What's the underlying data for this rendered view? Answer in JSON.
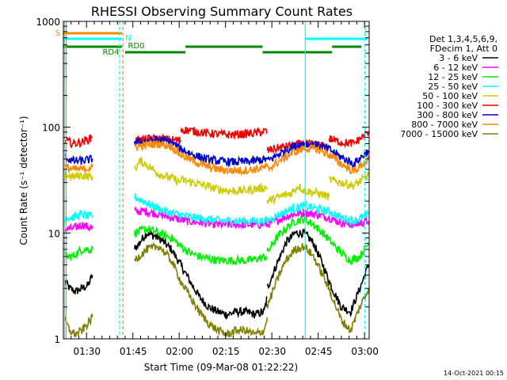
{
  "chart_data": {
    "type": "line",
    "title": "RHESSI Observing Summary Count Rates",
    "xlabel": "Start Time (09-Mar-08 01:22:22)",
    "ylabel": "Count Rate (s⁻¹ detector⁻¹)",
    "yscale": "log",
    "ylim": [
      1,
      1000
    ],
    "xlim_minutes": [
      0,
      99
    ],
    "x_ticks": [
      "01:30",
      "01:45",
      "02:00",
      "02:15",
      "02:30",
      "02:45",
      "03:00"
    ],
    "y_ticks": [
      "1",
      "10",
      "100",
      "1000"
    ],
    "footer_date": "14-Oct-2021 00:15",
    "legend_header": [
      "Det 1,3,4,5,6,9,",
      "FDecim 1, Att 0"
    ],
    "flag_labels": [
      "S",
      "N",
      "RD0",
      "RD4"
    ],
    "series": [
      {
        "name": "3 - 6 keV",
        "color": "#000000",
        "segments": [
          {
            "x": [
              0.6,
              2,
              4,
              6,
              8,
              9.4
            ],
            "y": [
              3.5,
              3,
              2.8,
              3,
              3.2,
              4
            ]
          },
          {
            "x": [
              23,
              27,
              31,
              35,
              38,
              41,
              44,
              47,
              50,
              53,
              56,
              59,
              62,
              65,
              66
            ],
            "y": [
              7,
              10,
              9,
              7,
              5,
              3.5,
              2.5,
              2,
              1.8,
              1.7,
              1.8,
              1.8,
              1.7,
              1.8,
              2.5
            ]
          },
          {
            "x": [
              66,
              69,
              72,
              75,
              78,
              81,
              84,
              87,
              90,
              93,
              96,
              98.8
            ],
            "y": [
              3,
              5,
              8,
              10,
              10,
              8,
              5,
              3,
              2,
              1.8,
              3,
              5
            ]
          }
        ]
      },
      {
        "name": "6 - 12 keV",
        "color": "#ff00ff",
        "segments": [
          {
            "x": [
              0.6,
              3,
              6,
              9.4
            ],
            "y": [
              11,
              11,
              12,
              11
            ]
          },
          {
            "x": [
              23,
              27,
              31,
              35,
              40,
              45,
              50,
              55,
              60,
              66
            ],
            "y": [
              16,
              16,
              15,
              14,
              13,
              12.5,
              12,
              12,
              12,
              12
            ]
          },
          {
            "x": [
              66,
              70,
              74,
              78,
              82,
              86,
              90,
              94,
              98.8
            ],
            "y": [
              12,
              13.5,
              15,
              15.5,
              15,
              14,
              12.5,
              12,
              13
            ]
          }
        ]
      },
      {
        "name": "12 - 25 keV",
        "color": "#00ee00",
        "segments": [
          {
            "x": [
              0.6,
              3,
              6,
              9.4
            ],
            "y": [
              6,
              6,
              7,
              7
            ]
          },
          {
            "x": [
              23,
              27,
              31,
              35,
              38,
              41,
              44,
              50,
              55,
              60,
              66
            ],
            "y": [
              10,
              11,
              10,
              9,
              7.5,
              6.5,
              6,
              5.5,
              5.5,
              5.5,
              6
            ]
          },
          {
            "x": [
              66,
              69,
              72,
              75,
              78,
              81,
              84,
              87,
              90,
              93,
              96,
              98.8
            ],
            "y": [
              6.5,
              9,
              11,
              13,
              13.5,
              12,
              10,
              8,
              6.5,
              5.5,
              6,
              8
            ]
          }
        ]
      },
      {
        "name": "25 - 50 keV",
        "color": "#00ffff",
        "segments": [
          {
            "x": [
              0.6,
              3,
              6,
              9.4
            ],
            "y": [
              14,
              14,
              15,
              14
            ]
          },
          {
            "x": [
              23,
              26,
              29,
              33,
              37,
              42,
              47,
              52,
              57,
              62,
              66
            ],
            "y": [
              22,
              20,
              18,
              16,
              15,
              14,
              13.5,
              13,
              13,
              13,
              13
            ]
          },
          {
            "x": [
              66,
              70,
              74,
              78,
              82,
              86,
              90,
              94,
              98.8
            ],
            "y": [
              13,
              15,
              17,
              18,
              17,
              16,
              14,
              13,
              15
            ]
          }
        ]
      },
      {
        "name": "50 - 100 keV",
        "color": "#cccc00",
        "segments": [
          {
            "x": [
              0.6,
              3,
              6,
              9.4
            ],
            "y": [
              35,
              34,
              35,
              34
            ]
          },
          {
            "x": [
              23,
              25,
              28,
              31,
              35,
              38
            ],
            "y": [
              40,
              48,
              42,
              36,
              33,
              30
            ]
          },
          {
            "x": [
              38,
              42,
              46,
              50,
              54,
              58,
              62,
              66
            ],
            "y": [
              32,
              30,
              28,
              26,
              25,
              25,
              26,
              27
            ]
          },
          {
            "x": [
              66,
              70,
              74,
              76,
              78,
              82,
              86
            ],
            "y": [
              20,
              22,
              24,
              28,
              25,
              24,
              22
            ]
          },
          {
            "x": [
              86,
              90,
              94,
              98.8
            ],
            "y": [
              32,
              30,
              28,
              35
            ]
          }
        ]
      },
      {
        "name": "100 - 300 keV",
        "color": "#ee0000",
        "segments": [
          {
            "x": [
              0.6,
              3,
              6,
              9.4
            ],
            "y": [
              75,
              70,
              72,
              80
            ]
          },
          {
            "x": [
              23,
              27,
              31,
              35,
              38
            ],
            "y": [
              75,
              77,
              78,
              76,
              75
            ]
          },
          {
            "x": [
              38,
              42,
              46,
              50,
              54,
              58,
              62,
              66
            ],
            "y": [
              95,
              92,
              88,
              86,
              85,
              86,
              88,
              92
            ]
          },
          {
            "x": [
              66,
              70,
              74,
              78,
              82,
              86
            ],
            "y": [
              60,
              64,
              67,
              70,
              68,
              65
            ]
          },
          {
            "x": [
              86,
              90,
              94,
              98.8
            ],
            "y": [
              78,
              72,
              70,
              90
            ]
          }
        ]
      },
      {
        "name": "300 - 800 keV",
        "color": "#0000cc",
        "segments": [
          {
            "x": [
              0.6,
              3,
              6,
              9.4
            ],
            "y": [
              52,
              48,
              48,
              50
            ]
          },
          {
            "x": [
              23,
              27,
              31,
              35,
              38,
              42,
              46,
              50,
              54,
              58,
              62,
              66
            ],
            "y": [
              72,
              74,
              76,
              72,
              62,
              55,
              50,
              48,
              47,
              47,
              48,
              50
            ]
          },
          {
            "x": [
              66,
              70,
              74,
              78,
              82,
              86,
              90,
              94,
              98.8
            ],
            "y": [
              48,
              56,
              65,
              70,
              68,
              62,
              52,
              45,
              60
            ]
          }
        ]
      },
      {
        "name": "800 - 7000 keV",
        "color": "#ff8800",
        "segments": [
          {
            "x": [
              0.6,
              3,
              6,
              9.4
            ],
            "y": [
              42,
              40,
              40,
              42
            ]
          },
          {
            "x": [
              23,
              27,
              31,
              35,
              38,
              42,
              46,
              50,
              54,
              58,
              62,
              66
            ],
            "y": [
              65,
              68,
              70,
              66,
              55,
              48,
              43,
              40,
              39,
              39,
              40,
              42
            ]
          },
          {
            "x": [
              66,
              70,
              74,
              78,
              82,
              86,
              90,
              94,
              98.8
            ],
            "y": [
              40,
              48,
              57,
              63,
              62,
              55,
              45,
              38,
              50
            ]
          }
        ]
      },
      {
        "name": "7000 - 15000 keV",
        "color": "#808000",
        "segments": [
          {
            "x": [
              0.6,
              2,
              4,
              6,
              8,
              9.4
            ],
            "y": [
              1.5,
              1.2,
              1.1,
              1.2,
              1.4,
              1.6
            ]
          },
          {
            "x": [
              23,
              27,
              31,
              35,
              38,
              41,
              44,
              47,
              50,
              53,
              56,
              59,
              62,
              65,
              66
            ],
            "y": [
              5.5,
              7,
              7.5,
              5.5,
              3.5,
              2.5,
              1.8,
              1.4,
              1.2,
              1.1,
              1.2,
              1.2,
              1.1,
              1.2,
              1.6
            ]
          },
          {
            "x": [
              66,
              69,
              72,
              75,
              78,
              81,
              84,
              87,
              90,
              93,
              96,
              98.8
            ],
            "y": [
              2,
              3.5,
              5.5,
              7,
              7.5,
              6,
              4,
              2.5,
              1.5,
              1.2,
              2,
              3
            ]
          }
        ]
      }
    ],
    "flags": [
      {
        "label": "S",
        "color": "#ff8800",
        "segments": [
          [
            0,
            19
          ]
        ]
      },
      {
        "label": "N",
        "color": "#00ffff",
        "segments": [
          [
            0,
            19
          ],
          [
            78.5,
            98.5
          ]
        ]
      },
      {
        "label": "RD0",
        "color": "#008800",
        "segments": [
          [
            0,
            19
          ],
          [
            39.5,
            64.5
          ],
          [
            87,
            96.5
          ]
        ]
      },
      {
        "label": "RD4",
        "color": "#008800",
        "segments": [
          [
            20,
            39.5
          ],
          [
            64.5,
            87
          ]
        ]
      }
    ],
    "vertical_markers": [
      {
        "x": 0.4,
        "color": "#00ffff",
        "style": "solid"
      },
      {
        "x": 0.9,
        "color": "#ff8800",
        "style": "solid"
      },
      {
        "x": 18.2,
        "color": "#00ffff",
        "style": "dashed"
      },
      {
        "x": 19.3,
        "color": "#ff8800",
        "style": "dashed"
      },
      {
        "x": 78.3,
        "color": "#00ffff",
        "style": "solid"
      },
      {
        "x": 97.6,
        "color": "#00ffff",
        "style": "dashed"
      }
    ]
  }
}
